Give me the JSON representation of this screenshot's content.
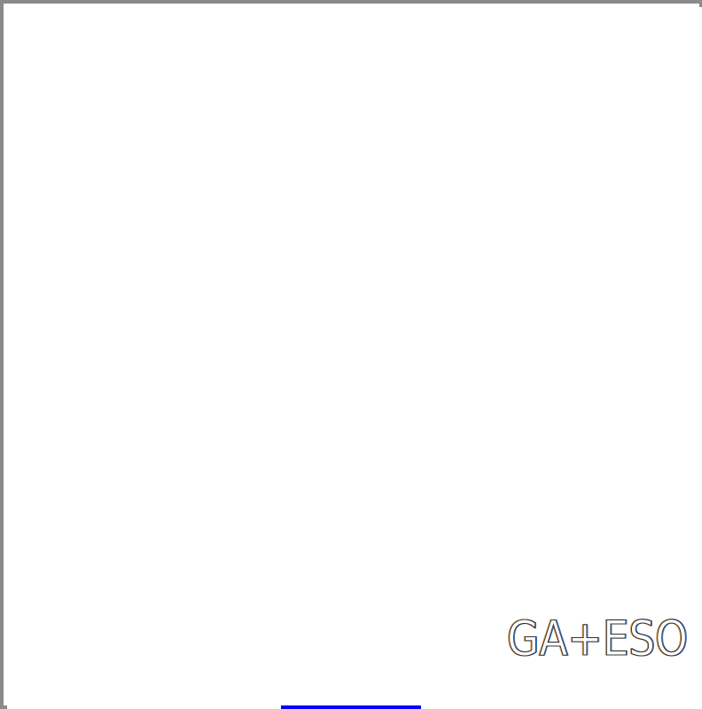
{
  "window": {
    "border_color": "#8a8a8a",
    "background_color": "#ffffff"
  },
  "logo": {
    "text": "GA+ESO",
    "stroke_color": "#333333",
    "fringe_colors": [
      "#d98a2b",
      "#2b6fd9"
    ]
  },
  "loading_indicator": {
    "color": "#0000ff"
  }
}
